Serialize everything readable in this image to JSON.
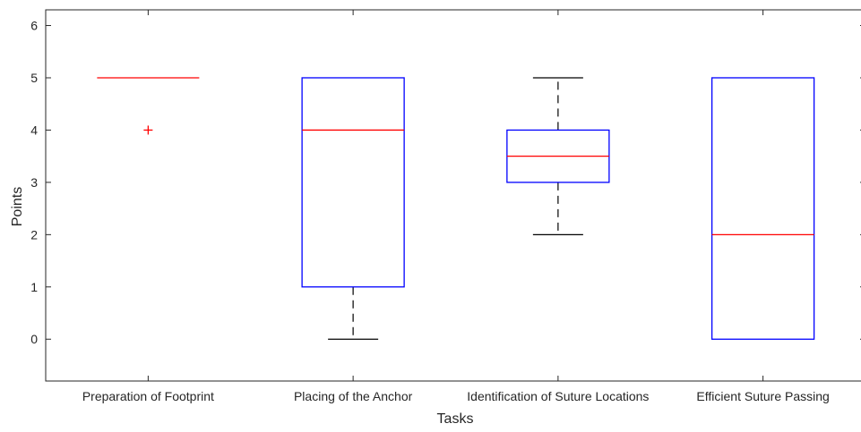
{
  "chart_data": {
    "type": "boxplot",
    "xlabel": "Tasks",
    "ylabel": "Points",
    "ylim": [
      -0.8,
      6.3
    ],
    "yticks": [
      0,
      1,
      2,
      3,
      4,
      5,
      6
    ],
    "categories": [
      "Preparation of Footprint",
      "Placing of the Anchor",
      "Identification of Suture Locations",
      "Efficient Suture Passing"
    ],
    "boxes": [
      {
        "category": "Preparation of Footprint",
        "q1": 5,
        "median": 5,
        "q3": 5,
        "whisker_low": 5,
        "whisker_high": 5,
        "outliers": [
          4
        ]
      },
      {
        "category": "Placing of the Anchor",
        "q1": 1,
        "median": 4,
        "q3": 5,
        "whisker_low": 0,
        "whisker_high": 5,
        "outliers": []
      },
      {
        "category": "Identification of Suture Locations",
        "q1": 3,
        "median": 3.5,
        "q3": 4,
        "whisker_low": 2,
        "whisker_high": 5,
        "outliers": []
      },
      {
        "category": "Efficient Suture Passing",
        "q1": 0,
        "median": 2,
        "q3": 5,
        "whisker_low": 0,
        "whisker_high": 5,
        "outliers": []
      }
    ],
    "grid": false,
    "colors": {
      "box": "#0000ff",
      "median": "#ff0000",
      "whisker": "#000000",
      "outlier": "#ff0000",
      "axis": "#262626"
    }
  }
}
